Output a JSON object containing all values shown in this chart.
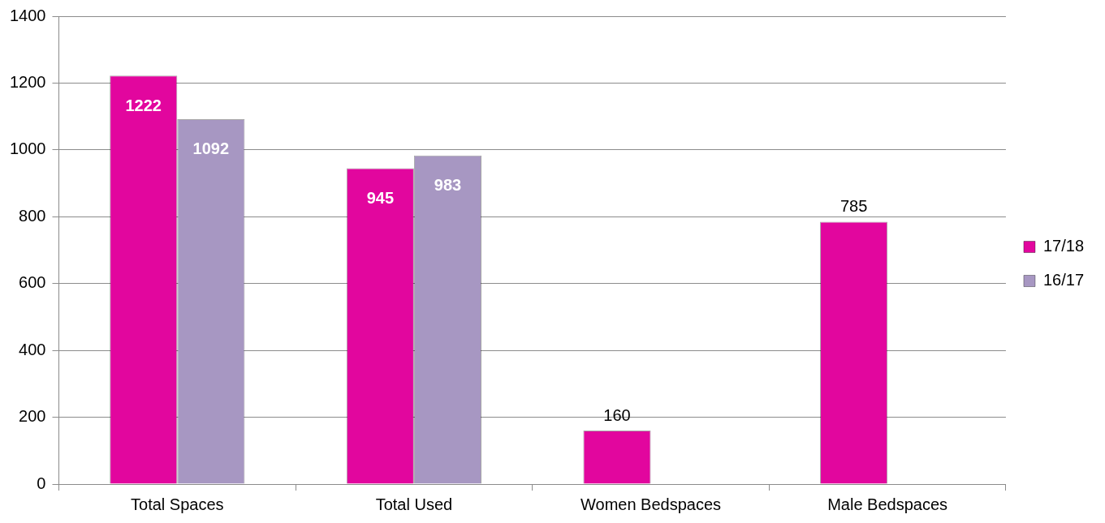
{
  "chart_data": {
    "type": "bar",
    "categories": [
      "Total Spaces",
      "Total Used",
      "Women Bedspaces",
      "Male Bedspaces"
    ],
    "series": [
      {
        "name": "17/18",
        "color": "#e2069e",
        "values": [
          1222,
          945,
          160,
          785
        ]
      },
      {
        "name": "16/17",
        "color": "#a797c2",
        "values": [
          1092,
          983,
          null,
          null
        ]
      }
    ],
    "ylim": [
      0,
      1400
    ],
    "yticks": [
      0,
      200,
      400,
      600,
      800,
      1000,
      1200,
      1400
    ],
    "grid": "y",
    "legend": "right",
    "data_labels": true
  }
}
